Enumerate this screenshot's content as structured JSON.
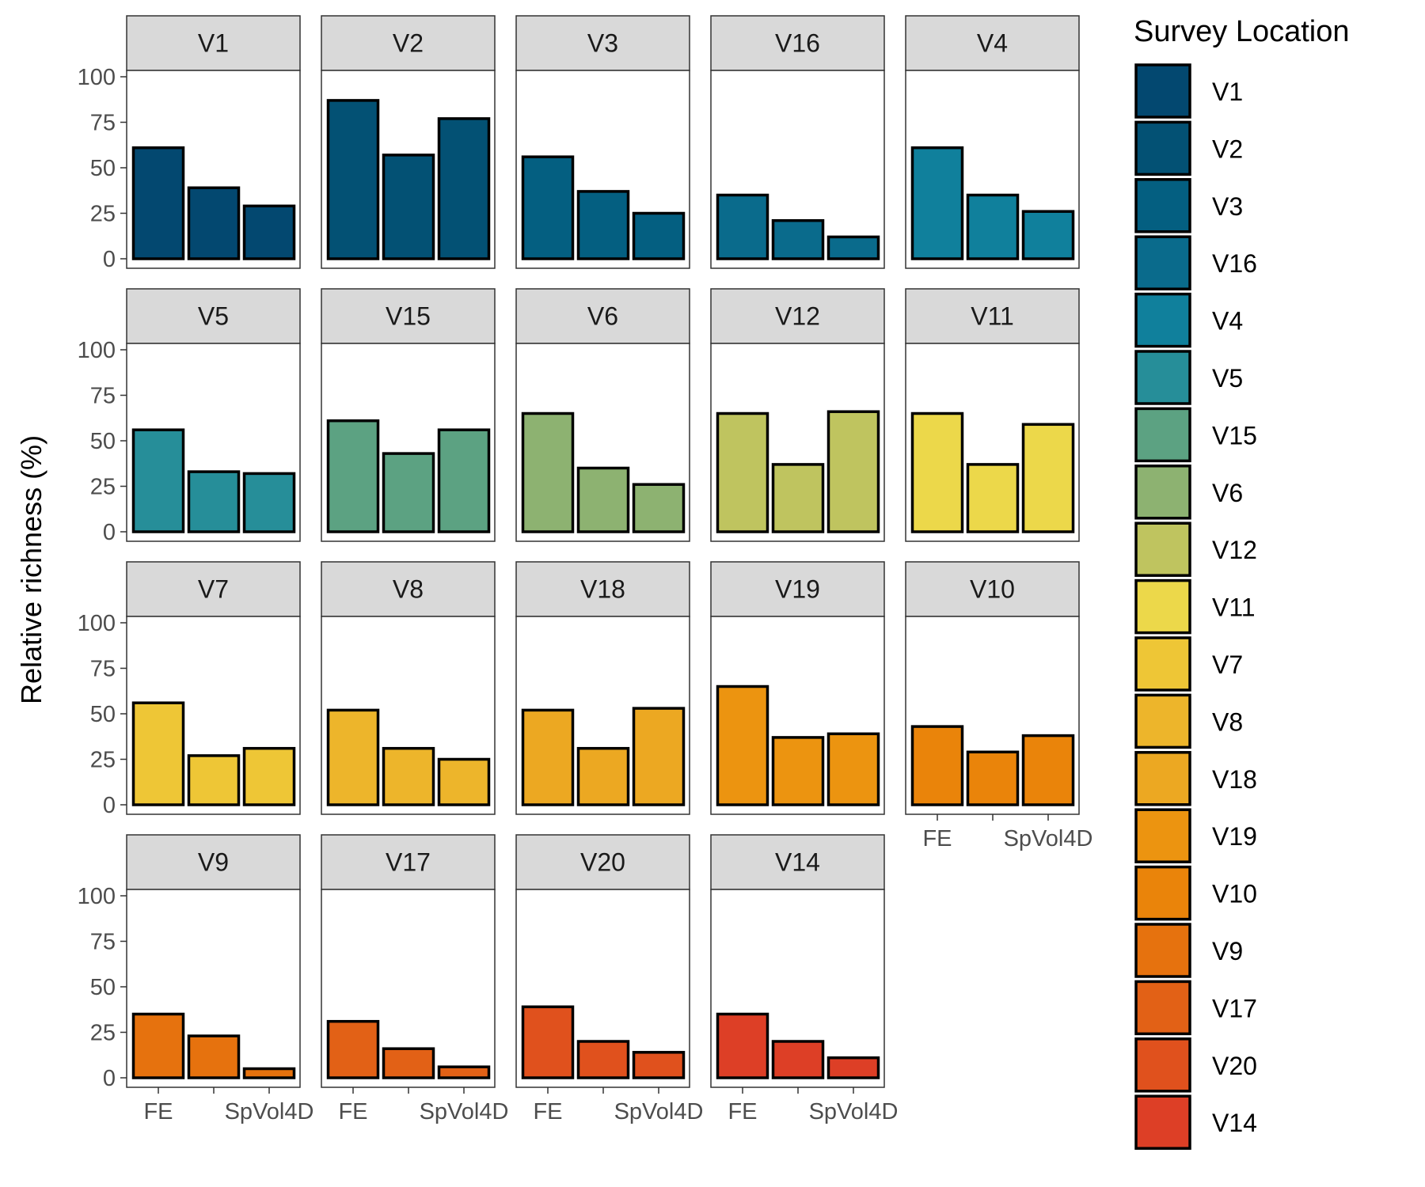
{
  "chart_data": {
    "type": "bar",
    "layout": "faceted",
    "categories": [
      "FE",
      "",
      "SpVol4D"
    ],
    "ylabel": "Relative richness (%)",
    "xlabel": "",
    "ylim": [
      0,
      100
    ],
    "yticks": [
      0,
      25,
      50,
      75,
      100
    ],
    "grid": false,
    "legend": {
      "title": "Survey Location",
      "placement": "right"
    },
    "facets": [
      {
        "label": "V1",
        "color": "#034870",
        "values": [
          61,
          39,
          29
        ]
      },
      {
        "label": "V2",
        "color": "#035174",
        "values": [
          87,
          57,
          77
        ]
      },
      {
        "label": "V3",
        "color": "#045f81",
        "values": [
          56,
          37,
          25
        ]
      },
      {
        "label": "V16",
        "color": "#0a6b8c",
        "values": [
          35,
          21,
          12
        ]
      },
      {
        "label": "V4",
        "color": "#10809c",
        "values": [
          61,
          35,
          26
        ]
      },
      {
        "label": "V5",
        "color": "#268e99",
        "values": [
          56,
          33,
          32
        ]
      },
      {
        "label": "V15",
        "color": "#5ca282",
        "values": [
          61,
          43,
          56
        ]
      },
      {
        "label": "V6",
        "color": "#8db271",
        "values": [
          65,
          35,
          26
        ]
      },
      {
        "label": "V12",
        "color": "#bfc45f",
        "values": [
          65,
          37,
          66
        ]
      },
      {
        "label": "V11",
        "color": "#ecd84a",
        "values": [
          65,
          37,
          59
        ]
      },
      {
        "label": "V7",
        "color": "#eec636",
        "values": [
          56,
          27,
          31
        ]
      },
      {
        "label": "V8",
        "color": "#edb52b",
        "values": [
          52,
          31,
          25
        ]
      },
      {
        "label": "V18",
        "color": "#eca822",
        "values": [
          52,
          31,
          53
        ]
      },
      {
        "label": "V19",
        "color": "#ec9410",
        "values": [
          65,
          37,
          39
        ]
      },
      {
        "label": "V10",
        "color": "#ea840a",
        "values": [
          43,
          29,
          38
        ]
      },
      {
        "label": "V9",
        "color": "#e6720e",
        "values": [
          35,
          23,
          5
        ]
      },
      {
        "label": "V17",
        "color": "#e26116",
        "values": [
          31,
          16,
          6
        ]
      },
      {
        "label": "V20",
        "color": "#e0511d",
        "values": [
          39,
          20,
          14
        ]
      },
      {
        "label": "V14",
        "color": "#dd3f26",
        "values": [
          35,
          20,
          11
        ]
      }
    ]
  }
}
